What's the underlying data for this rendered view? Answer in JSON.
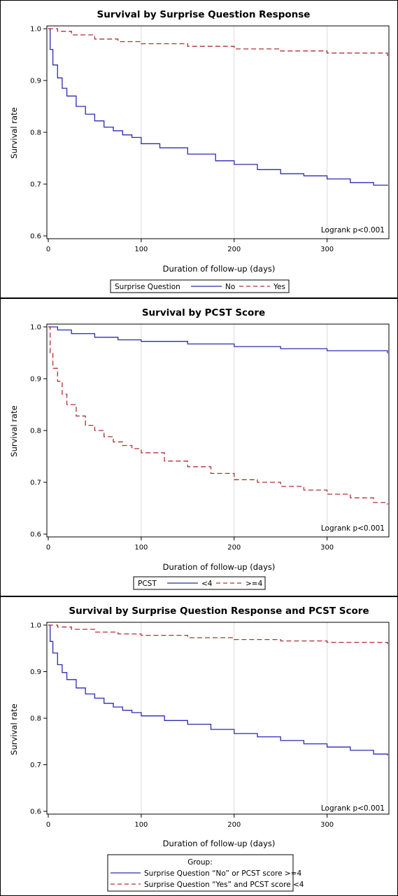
{
  "chart_data": [
    {
      "type": "line",
      "title": "Survival by Surprise Question Response",
      "xlabel": "Duration of follow-up (days)",
      "ylabel": "Survival rate",
      "xlim": [
        0,
        365
      ],
      "ylim": [
        0.6,
        1.0
      ],
      "xticks": [
        0,
        100,
        200,
        300
      ],
      "yticks": [
        0.6,
        0.7,
        0.8,
        0.9,
        1.0
      ],
      "grid": "vertical",
      "annotation": "Logrank p<0.001",
      "legend": {
        "title": "Surprise Question",
        "position": "bottom"
      },
      "series": [
        {
          "name": "No",
          "color": "#2b2bb0",
          "style": "solid",
          "x": [
            0,
            2,
            5,
            10,
            15,
            20,
            30,
            40,
            50,
            60,
            70,
            80,
            90,
            100,
            120,
            150,
            180,
            200,
            225,
            250,
            275,
            300,
            325,
            350,
            365
          ],
          "y": [
            1.0,
            0.96,
            0.93,
            0.905,
            0.885,
            0.87,
            0.85,
            0.835,
            0.822,
            0.81,
            0.803,
            0.795,
            0.79,
            0.778,
            0.77,
            0.758,
            0.745,
            0.738,
            0.728,
            0.72,
            0.716,
            0.71,
            0.703,
            0.698,
            0.697
          ]
        },
        {
          "name": "Yes",
          "color": "#b03030",
          "style": "dashed",
          "x": [
            0,
            10,
            25,
            50,
            75,
            100,
            150,
            200,
            250,
            300,
            365
          ],
          "y": [
            1.0,
            0.995,
            0.988,
            0.98,
            0.975,
            0.971,
            0.966,
            0.961,
            0.957,
            0.953,
            0.947
          ]
        }
      ]
    },
    {
      "type": "line",
      "title": "Survival by PCST Score",
      "xlabel": "Duration of follow-up (days)",
      "ylabel": "Survival rate",
      "xlim": [
        0,
        365
      ],
      "ylim": [
        0.6,
        1.0
      ],
      "xticks": [
        0,
        100,
        200,
        300
      ],
      "yticks": [
        0.6,
        0.7,
        0.8,
        0.9,
        1.0
      ],
      "grid": "vertical",
      "annotation": "Logrank p<0.001",
      "legend": {
        "title": "PCST",
        "position": "bottom"
      },
      "series": [
        {
          "name": "<4",
          "color": "#2b2bb0",
          "style": "solid",
          "x": [
            0,
            10,
            25,
            50,
            75,
            100,
            150,
            200,
            250,
            300,
            365
          ],
          "y": [
            1.0,
            0.994,
            0.987,
            0.98,
            0.975,
            0.972,
            0.967,
            0.962,
            0.958,
            0.954,
            0.949
          ]
        },
        {
          "name": ">=4",
          "color": "#b03030",
          "style": "dashed",
          "x": [
            0,
            2,
            5,
            10,
            15,
            20,
            30,
            40,
            50,
            60,
            70,
            80,
            90,
            100,
            125,
            150,
            175,
            200,
            225,
            250,
            275,
            300,
            325,
            350,
            365
          ],
          "y": [
            1.0,
            0.95,
            0.92,
            0.895,
            0.87,
            0.85,
            0.828,
            0.81,
            0.8,
            0.788,
            0.778,
            0.771,
            0.765,
            0.757,
            0.741,
            0.73,
            0.717,
            0.705,
            0.7,
            0.692,
            0.685,
            0.677,
            0.67,
            0.661,
            0.657
          ]
        }
      ]
    },
    {
      "type": "line",
      "title": "Survival by Surprise Question Response and PCST Score",
      "xlabel": "Duration of follow-up (days)",
      "ylabel": "Survival rate",
      "xlim": [
        0,
        365
      ],
      "ylim": [
        0.6,
        1.0
      ],
      "xticks": [
        0,
        100,
        200,
        300
      ],
      "yticks": [
        0.6,
        0.7,
        0.8,
        0.9,
        1.0
      ],
      "grid": "vertical",
      "annotation": "Logrank p<0.001",
      "legend": {
        "title": "Group:",
        "position": "bottom"
      },
      "series": [
        {
          "name": "Surprise Question “No” or PCST score >=4",
          "color": "#2b2bb0",
          "style": "solid",
          "x": [
            0,
            2,
            5,
            10,
            15,
            20,
            30,
            40,
            50,
            60,
            70,
            80,
            90,
            100,
            125,
            150,
            175,
            200,
            225,
            250,
            275,
            300,
            325,
            350,
            365
          ],
          "y": [
            1.0,
            0.965,
            0.94,
            0.915,
            0.898,
            0.883,
            0.865,
            0.852,
            0.843,
            0.832,
            0.824,
            0.817,
            0.812,
            0.805,
            0.795,
            0.787,
            0.776,
            0.767,
            0.76,
            0.752,
            0.745,
            0.738,
            0.731,
            0.723,
            0.72
          ]
        },
        {
          "name": "Surprise Question “Yes” and PCST score <4",
          "color": "#b03030",
          "style": "dashed",
          "x": [
            0,
            10,
            25,
            50,
            75,
            100,
            150,
            200,
            250,
            300,
            365
          ],
          "y": [
            1.0,
            0.996,
            0.991,
            0.985,
            0.981,
            0.978,
            0.973,
            0.969,
            0.966,
            0.963,
            0.959
          ]
        }
      ]
    }
  ]
}
